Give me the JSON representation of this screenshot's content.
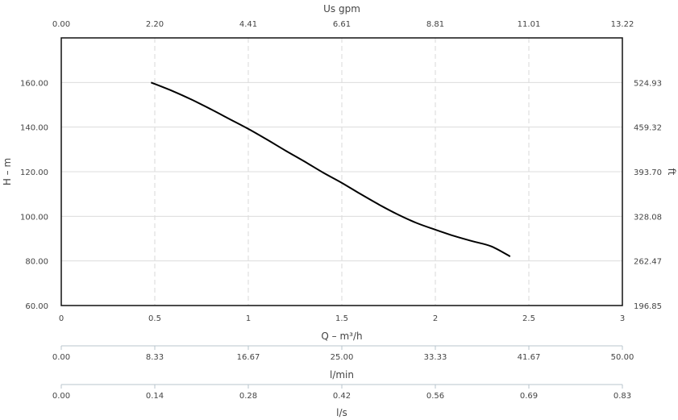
{
  "chart_data": {
    "type": "line",
    "x_axis": {
      "label": "Q – m³/h",
      "ticks": [
        "0",
        "0.5",
        "1",
        "1.5",
        "2",
        "2.5",
        "3"
      ],
      "range": [
        0,
        3
      ]
    },
    "y_axis_left": {
      "label": "H – m",
      "ticks": [
        "60.00",
        "80.00",
        "100.00",
        "120.00",
        "140.00",
        "160.00"
      ],
      "range": [
        60,
        180
      ]
    },
    "y_axis_right": {
      "label": "ft",
      "ticks": [
        "196.85",
        "262.47",
        "328.08",
        "393.70",
        "459.32",
        "524.93"
      ]
    },
    "x_axis_top": {
      "label": "Us gpm",
      "ticks": [
        "0.00",
        "2.20",
        "4.41",
        "6.61",
        "8.81",
        "11.01",
        "13.22"
      ]
    },
    "secondary_axes": [
      {
        "label": "l/min",
        "ticks": [
          "0.00",
          "8.33",
          "16.67",
          "25.00",
          "33.33",
          "41.67",
          "50.00"
        ]
      },
      {
        "label": "l/s",
        "ticks": [
          "0.00",
          "0.14",
          "0.28",
          "0.42",
          "0.56",
          "0.69",
          "0.83"
        ]
      }
    ],
    "series": [
      {
        "x": [
          0.48,
          0.6,
          0.7,
          0.8,
          0.9,
          1.0,
          1.1,
          1.2,
          1.3,
          1.4,
          1.5,
          1.6,
          1.7,
          1.8,
          1.9,
          2.0,
          2.1,
          2.2,
          2.3,
          2.4
        ],
        "y": [
          160.0,
          156.0,
          152.2,
          148.0,
          143.6,
          139.2,
          134.4,
          129.4,
          124.6,
          119.6,
          115.0,
          110.0,
          105.2,
          100.8,
          97.0,
          94.0,
          91.2,
          88.8,
          86.5,
          82.0
        ]
      }
    ],
    "grid": true,
    "colors": {
      "curve": "#000000",
      "grid": "#d8d8d8",
      "frame": "#111111"
    }
  }
}
